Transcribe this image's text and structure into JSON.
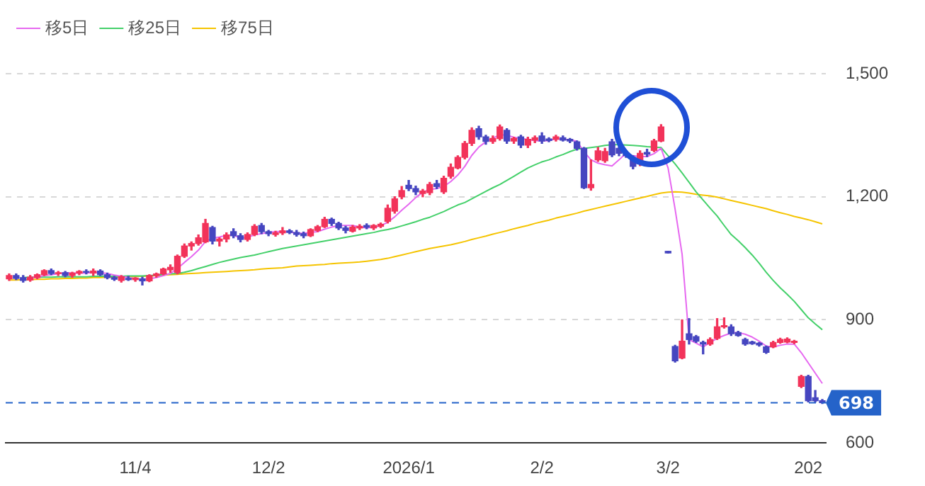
{
  "chart_data": {
    "type": "candlestick",
    "categories": [
      null,
      null,
      null,
      null,
      null,
      null,
      null,
      null,
      null,
      null,
      null,
      null,
      null,
      null,
      null,
      null,
      null,
      null,
      "11/4",
      null,
      null,
      null,
      null,
      null,
      null,
      null,
      null,
      null,
      null,
      null,
      null,
      null,
      null,
      null,
      null,
      null,
      null,
      "12/2",
      null,
      null,
      null,
      null,
      null,
      null,
      null,
      null,
      null,
      null,
      null,
      null,
      null,
      null,
      null,
      null,
      null,
      null,
      null,
      "2026/1",
      null,
      null,
      null,
      null,
      null,
      null,
      null,
      null,
      null,
      null,
      null,
      null,
      null,
      null,
      null,
      null,
      null,
      null,
      "2/2",
      null,
      null,
      null,
      null,
      null,
      null,
      null,
      null,
      null,
      null,
      null,
      null,
      null,
      null,
      null,
      null,
      null,
      "3/2",
      null,
      null,
      null,
      null,
      null,
      null,
      null,
      null,
      null,
      null,
      null,
      null,
      null,
      null,
      null,
      null,
      null,
      null,
      null,
      "202",
      null,
      null
    ],
    "ohlc": [
      [
        1000,
        1012,
        996,
        1008
      ],
      [
        1008,
        1012,
        998,
        1001
      ],
      [
        1003,
        1008,
        992,
        996
      ],
      [
        997,
        1008,
        994,
        1004
      ],
      [
        1003,
        1012,
        1000,
        1010
      ],
      [
        1010,
        1022,
        1008,
        1020
      ],
      [
        1020,
        1024,
        1010,
        1013
      ],
      [
        1013,
        1018,
        1008,
        1015
      ],
      [
        1015,
        1018,
        1005,
        1008
      ],
      [
        1008,
        1016,
        1004,
        1014
      ],
      [
        1014,
        1020,
        1010,
        1018
      ],
      [
        1018,
        1022,
        1012,
        1016
      ],
      [
        1014,
        1024,
        1008,
        1019
      ],
      [
        1019,
        1022,
        1008,
        1010
      ],
      [
        1010,
        1014,
        1000,
        1003
      ],
      [
        1003,
        1006,
        996,
        999
      ],
      [
        996,
        1008,
        992,
        1005
      ],
      [
        1001,
        1006,
        996,
        998
      ],
      [
        998,
        1003,
        994,
        1002
      ],
      [
        1000,
        1004,
        985,
        995
      ],
      [
        995,
        1010,
        993,
        1008
      ],
      [
        1008,
        1014,
        1004,
        1012
      ],
      [
        1012,
        1026,
        1010,
        1024
      ],
      [
        1022,
        1034,
        1016,
        1028
      ],
      [
        1015,
        1058,
        1012,
        1055
      ],
      [
        1055,
        1085,
        1052,
        1080
      ],
      [
        1080,
        1090,
        1070,
        1086
      ],
      [
        1086,
        1107,
        1082,
        1100
      ],
      [
        1090,
        1145,
        1088,
        1135
      ],
      [
        1125,
        1128,
        1085,
        1092
      ],
      [
        1092,
        1100,
        1080,
        1097
      ],
      [
        1097,
        1112,
        1090,
        1107
      ],
      [
        1115,
        1122,
        1100,
        1105
      ],
      [
        1105,
        1110,
        1090,
        1096
      ],
      [
        1096,
        1112,
        1092,
        1108
      ],
      [
        1108,
        1132,
        1105,
        1128
      ],
      [
        1130,
        1135,
        1110,
        1115
      ],
      [
        1115,
        1118,
        1105,
        1110
      ],
      [
        1108,
        1116,
        1104,
        1112
      ],
      [
        1112,
        1125,
        1108,
        1117
      ],
      [
        1117,
        1120,
        1110,
        1113
      ],
      [
        1113,
        1118,
        1104,
        1108
      ],
      [
        1110,
        1114,
        1100,
        1105
      ],
      [
        1105,
        1122,
        1103,
        1120
      ],
      [
        1118,
        1130,
        1115,
        1127
      ],
      [
        1127,
        1150,
        1125,
        1145
      ],
      [
        1145,
        1148,
        1130,
        1135
      ],
      [
        1135,
        1138,
        1120,
        1124
      ],
      [
        1124,
        1128,
        1112,
        1118
      ],
      [
        1116,
        1130,
        1114,
        1126
      ],
      [
        1124,
        1132,
        1120,
        1128
      ],
      [
        1130,
        1134,
        1122,
        1126
      ],
      [
        1124,
        1132,
        1120,
        1130
      ],
      [
        1128,
        1136,
        1125,
        1133
      ],
      [
        1140,
        1180,
        1136,
        1172
      ],
      [
        1165,
        1200,
        1160,
        1195
      ],
      [
        1200,
        1225,
        1195,
        1215
      ],
      [
        1228,
        1240,
        1215,
        1220
      ],
      [
        1220,
        1226,
        1205,
        1212
      ],
      [
        1208,
        1218,
        1200,
        1214
      ],
      [
        1210,
        1235,
        1205,
        1230
      ],
      [
        1232,
        1240,
        1220,
        1225
      ],
      [
        1212,
        1250,
        1208,
        1245
      ],
      [
        1250,
        1280,
        1245,
        1272
      ],
      [
        1270,
        1300,
        1268,
        1296
      ],
      [
        1296,
        1335,
        1292,
        1330
      ],
      [
        1330,
        1368,
        1325,
        1362
      ],
      [
        1366,
        1372,
        1340,
        1346
      ],
      [
        1346,
        1350,
        1328,
        1335
      ],
      [
        1335,
        1348,
        1330,
        1342
      ],
      [
        1342,
        1375,
        1338,
        1370
      ],
      [
        1362,
        1366,
        1330,
        1336
      ],
      [
        1336,
        1345,
        1330,
        1342
      ],
      [
        1346,
        1350,
        1320,
        1326
      ],
      [
        1326,
        1345,
        1320,
        1340
      ],
      [
        1338,
        1348,
        1332,
        1344
      ],
      [
        1348,
        1356,
        1330,
        1336
      ],
      [
        1341,
        1344,
        1334,
        1337
      ],
      [
        1340,
        1350,
        1336,
        1346
      ],
      [
        1344,
        1348,
        1336,
        1338
      ],
      [
        1340,
        1342,
        1332,
        1336
      ],
      [
        1334,
        1336,
        1314,
        1318
      ],
      [
        1318,
        1320,
        1220,
        1222
      ],
      [
        1222,
        1290,
        1216,
        1230
      ],
      [
        1290,
        1320,
        1286,
        1312
      ],
      [
        1288,
        1318,
        1284,
        1310
      ],
      [
        1334,
        1340,
        1298,
        1302
      ],
      [
        1318,
        1322,
        1300,
        1306
      ],
      [
        1304,
        1308,
        1296,
        1300
      ],
      [
        1296,
        1300,
        1268,
        1274
      ],
      [
        1280,
        1312,
        1276,
        1306
      ],
      [
        1308,
        1316,
        1298,
        1304
      ],
      [
        1313,
        1340,
        1310,
        1336
      ],
      [
        1336,
        1376,
        1334,
        1370
      ],
      [
        1067,
        1067,
        1063,
        1063
      ],
      [
        835,
        838,
        797,
        800
      ],
      [
        807,
        900,
        805,
        848
      ],
      [
        866,
        903,
        841,
        852
      ],
      [
        859,
        862,
        845,
        848
      ],
      [
        845,
        848,
        817,
        841
      ],
      [
        841,
        856,
        838,
        852
      ],
      [
        855,
        903,
        852,
        883
      ],
      [
        883,
        905,
        880,
        886
      ],
      [
        883,
        888,
        862,
        866
      ],
      [
        869,
        872,
        860,
        862
      ],
      [
        852,
        855,
        838,
        841
      ],
      [
        846,
        848,
        840,
        842
      ],
      [
        843,
        845,
        836,
        839
      ],
      [
        834,
        836,
        818,
        821
      ],
      [
        834,
        848,
        832,
        845
      ],
      [
        845,
        855,
        843,
        852
      ],
      [
        846,
        856,
        844,
        853
      ],
      [
        845,
        850,
        842,
        848
      ],
      [
        738,
        765,
        735,
        762
      ],
      [
        762,
        765,
        700,
        703
      ],
      [
        710,
        728,
        700,
        703
      ],
      [
        703,
        706,
        696,
        698
      ]
    ],
    "colors": [
      "#f2335a",
      "#4646c0",
      "#4646c0",
      "#f2335a",
      "#f2335a",
      "#f2335a",
      "#4646c0",
      "#f2335a",
      "#4646c0",
      "#f2335a",
      "#f2335a",
      "#4646c0",
      "#f2335a",
      "#4646c0",
      "#4646c0",
      "#4646c0",
      "#f2335a",
      "#4646c0",
      "#f2335a",
      "#4646c0",
      "#f2335a",
      "#f2335a",
      "#f2335a",
      "#f2335a",
      "#f2335a",
      "#f2335a",
      "#f2335a",
      "#f2335a",
      "#f2335a",
      "#4646c0",
      "#f2335a",
      "#f2335a",
      "#4646c0",
      "#4646c0",
      "#f2335a",
      "#f2335a",
      "#4646c0",
      "#4646c0",
      "#f2335a",
      "#f2335a",
      "#4646c0",
      "#4646c0",
      "#4646c0",
      "#f2335a",
      "#f2335a",
      "#f2335a",
      "#4646c0",
      "#4646c0",
      "#4646c0",
      "#f2335a",
      "#f2335a",
      "#4646c0",
      "#f2335a",
      "#f2335a",
      "#f2335a",
      "#f2335a",
      "#f2335a",
      "#4646c0",
      "#4646c0",
      "#f2335a",
      "#f2335a",
      "#4646c0",
      "#f2335a",
      "#f2335a",
      "#f2335a",
      "#f2335a",
      "#f2335a",
      "#4646c0",
      "#4646c0",
      "#f2335a",
      "#f2335a",
      "#4646c0",
      "#f2335a",
      "#4646c0",
      "#f2335a",
      "#f2335a",
      "#4646c0",
      "#4646c0",
      "#f2335a",
      "#4646c0",
      "#4646c0",
      "#4646c0",
      "#4646c0",
      "#f2335a",
      "#f2335a",
      "#f2335a",
      "#4646c0",
      "#4646c0",
      "#4646c0",
      "#4646c0",
      "#f2335a",
      "#4646c0",
      "#f2335a",
      "#f2335a",
      "#4646c0",
      "#4646c0",
      "#f2335a",
      "#4646c0",
      "#4646c0",
      "#4646c0",
      "#f2335a",
      "#f2335a",
      "#f2335a",
      "#4646c0",
      "#4646c0",
      "#4646c0",
      "#4646c0",
      "#4646c0",
      "#4646c0",
      "#f2335a",
      "#f2335a",
      "#f2335a",
      "#f2335a",
      "#f2335a",
      "#4646c0",
      "#4646c0",
      "#4646c0"
    ],
    "series": [
      {
        "name": "移5日",
        "type": "line",
        "color": "#e668f0",
        "values": [
          null,
          null,
          null,
          1003,
          1004,
          1008,
          1010,
          1012,
          1015,
          1014,
          1014,
          1014,
          1015,
          1015,
          1013,
          1009,
          1006,
          1003,
          1000,
          999,
          1000,
          1003,
          1008,
          1013,
          1025,
          1040,
          1054,
          1070,
          1091,
          1099,
          1102,
          1106,
          1107,
          1099,
          1101,
          1107,
          1110,
          1113,
          1115,
          1116,
          1114,
          1111,
          1111,
          1113,
          1115,
          1121,
          1126,
          1130,
          1130,
          1130,
          1126,
          1124,
          1126,
          1129,
          1138,
          1151,
          1167,
          1182,
          1198,
          1211,
          1218,
          1220,
          1225,
          1237,
          1253,
          1274,
          1301,
          1321,
          1334,
          1343,
          1351,
          1350,
          1345,
          1342,
          1340,
          1337,
          1336,
          1337,
          1341,
          1340,
          1339,
          1335,
          1310,
          1290,
          1282,
          1278,
          1275,
          1290,
          1306,
          1300,
          1298,
          1298,
          1305,
          1318,
          1270,
          1170,
          1060,
          852,
          843,
          834,
          845,
          855,
          862,
          868,
          869,
          865,
          858,
          848,
          836,
          834,
          838,
          841,
          841,
          820,
          795,
          770,
          745
        ]
      },
      {
        "name": "移25日",
        "type": "line",
        "color": "#44d06a",
        "values": [
          null,
          null,
          1003,
          1004,
          1004,
          1004,
          1004,
          1005,
          1005,
          1005,
          1005,
          1005,
          1006,
          1006,
          1006,
          1006,
          1006,
          1007,
          1007,
          1007,
          1008,
          1009,
          1010,
          1012,
          1013,
          1016,
          1020,
          1025,
          1030,
          1035,
          1040,
          1044,
          1048,
          1052,
          1055,
          1058,
          1062,
          1066,
          1070,
          1074,
          1077,
          1080,
          1083,
          1086,
          1089,
          1092,
          1095,
          1098,
          1101,
          1104,
          1107,
          1110,
          1113,
          1117,
          1120,
          1124,
          1129,
          1134,
          1139,
          1145,
          1150,
          1157,
          1164,
          1172,
          1180,
          1186,
          1195,
          1204,
          1213,
          1222,
          1230,
          1240,
          1250,
          1260,
          1270,
          1278,
          1285,
          1290,
          1297,
          1303,
          1310,
          1316,
          1318,
          1320,
          1322,
          1325,
          1327,
          1327,
          1326,
          1325,
          1324,
          1322,
          1321,
          1320,
          1300,
          1280,
          1258,
          1235,
          1212,
          1192,
          1172,
          1153,
          1130,
          1108,
          1093,
          1076,
          1058,
          1038,
          1016,
          996,
          978,
          962,
          945,
          925,
          905,
          890,
          876
        ]
      },
      {
        "name": "移75日",
        "type": "line",
        "color": "#f5c400",
        "values": [
          997,
          997,
          998,
          998,
          999,
          999,
          1000,
          1000,
          1001,
          1001,
          1002,
          1002,
          1003,
          1003,
          1004,
          1004,
          1005,
          1005,
          1006,
          1006,
          1007,
          1008,
          1009,
          1010,
          1011,
          1012,
          1013,
          1014,
          1015,
          1016,
          1017,
          1018,
          1019,
          1020,
          1021,
          1022,
          1024,
          1025,
          1026,
          1027,
          1029,
          1031,
          1032,
          1033,
          1034,
          1035,
          1037,
          1038,
          1039,
          1040,
          1041,
          1043,
          1045,
          1047,
          1050,
          1054,
          1058,
          1062,
          1066,
          1070,
          1074,
          1077,
          1080,
          1083,
          1087,
          1091,
          1096,
          1100,
          1104,
          1109,
          1113,
          1117,
          1122,
          1126,
          1130,
          1135,
          1139,
          1143,
          1148,
          1152,
          1156,
          1160,
          1165,
          1169,
          1173,
          1177,
          1181,
          1185,
          1189,
          1193,
          1197,
          1201,
          1205,
          1209,
          1211,
          1212,
          1211,
          1209,
          1206,
          1204,
          1202,
          1199,
          1195,
          1191,
          1187,
          1183,
          1179,
          1175,
          1171,
          1166,
          1161,
          1157,
          1152,
          1148,
          1144,
          1139,
          1134
        ]
      }
    ],
    "ylim": [
      600,
      1500
    ],
    "yticks": [
      600,
      900,
      {
        "value": 1200,
        "label": "1,200"
      },
      {
        "value": 1500,
        "label": "1,500"
      }
    ],
    "ref_lines": [
      {
        "axis": "y",
        "value": 698,
        "label": "698",
        "color": "#2563c9",
        "line_style": "dashed"
      }
    ],
    "grid": "y",
    "legend": "top left",
    "marker": "none",
    "line_style": "solid"
  }
}
